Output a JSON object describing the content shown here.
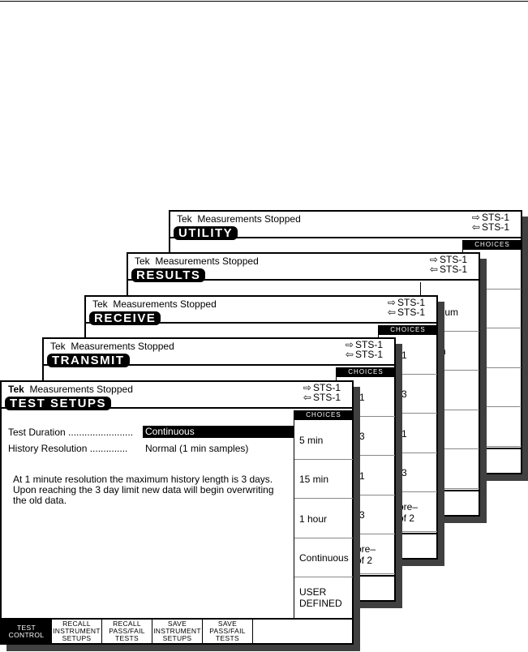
{
  "panels": {
    "utility": {
      "status": "Tek  Measurements Stopped",
      "title": "UTILITY",
      "tx": "STS-1",
      "rx": "STS-1",
      "choices_header": "CHOICES"
    },
    "results": {
      "status": "Tek  Measurements Stopped",
      "title": "RESULTS",
      "tx": "STS-1",
      "rx": "STS-1",
      "choice_fragments": [
        "lium",
        "h"
      ]
    },
    "receive": {
      "status": "Tek  Measurements Stopped",
      "title": "RECEIVE",
      "tx": "STS-1",
      "rx": "STS-1",
      "choices_header": "CHOICES",
      "choice_fragments": [
        "-1",
        "-3",
        "-1",
        "-3",
        "ore–\nof 2"
      ]
    },
    "transmit": {
      "status": "Tek  Measurements Stopped",
      "title": "TRANSMIT",
      "tx": "STS-1",
      "rx": "STS-1",
      "choices_header": "CHOICES",
      "choice_fragments": [
        "-1",
        "-3",
        "-1",
        "-3",
        "ore–\nof 2"
      ]
    },
    "test_setups": {
      "status_brand": "Tek",
      "status": "Measurements Stopped",
      "title": "TEST SETUPS",
      "tx": "STS-1",
      "rx": "STS-1",
      "choices_header": "CHOICES",
      "fields": [
        {
          "label": "Test Duration ........................",
          "value": "Continuous",
          "selected": true
        },
        {
          "label": "History Resolution ..............",
          "value": "Normal (1 min samples)"
        }
      ],
      "message": "At 1 minute resolution the maximum history length is 3 days. Upon reaching the 3 day limit new data will begin overwriting the old data.",
      "choices": [
        "5 min",
        "15 min",
        "1 hour",
        "Continuous",
        "USER DEFINED"
      ],
      "softkeys": [
        {
          "line1": "TEST",
          "line2": "CONTROL",
          "active": true
        },
        {
          "line1": "RECALL",
          "line2": "INSTRUMENT",
          "line3": "SETUPS"
        },
        {
          "line1": "RECALL",
          "line2": "PASS/FAIL",
          "line3": "TESTS"
        },
        {
          "line1": "SAVE",
          "line2": "INSTRUMENT",
          "line3": "SETUPS"
        },
        {
          "line1": "SAVE",
          "line2": "PASS/FAIL",
          "line3": "TESTS"
        }
      ]
    }
  },
  "icons": {
    "tx": "transmit-arrow-icon",
    "rx": "receive-arrow-icon"
  }
}
